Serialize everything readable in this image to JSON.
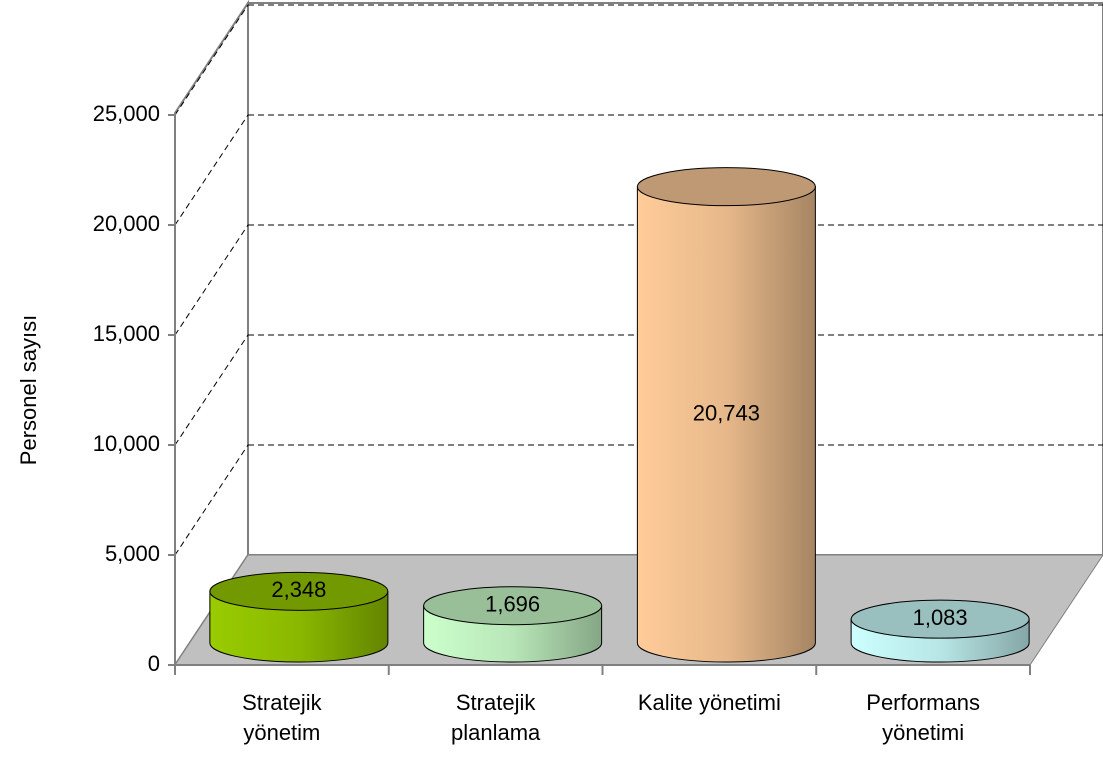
{
  "chart_data": {
    "type": "bar3d",
    "y_label": "Personel sayısı",
    "categories": [
      "Stratejik\nyönetim",
      "Stratejik\nplanlama",
      "Kalite yönetimi",
      "Performans\nyönetimi"
    ],
    "values": [
      2348,
      1696,
      20743,
      1083
    ],
    "value_labels": [
      "2,348",
      "1,696",
      "20,743",
      "1,083"
    ],
    "colors": [
      "#99cc00",
      "#ccffcc",
      "#ffcc99",
      "#ccffff"
    ],
    "ylim": [
      0,
      25000
    ],
    "yticks": [
      0,
      {
        "value": 5000,
        "label": "5,000"
      },
      {
        "value": 10000,
        "label": "10,000"
      },
      {
        "value": 15000,
        "label": "15,000"
      },
      {
        "value": 20000,
        "label": "20,000"
      },
      {
        "value": 25000,
        "label": "25,000"
      }
    ],
    "grid": true
  }
}
